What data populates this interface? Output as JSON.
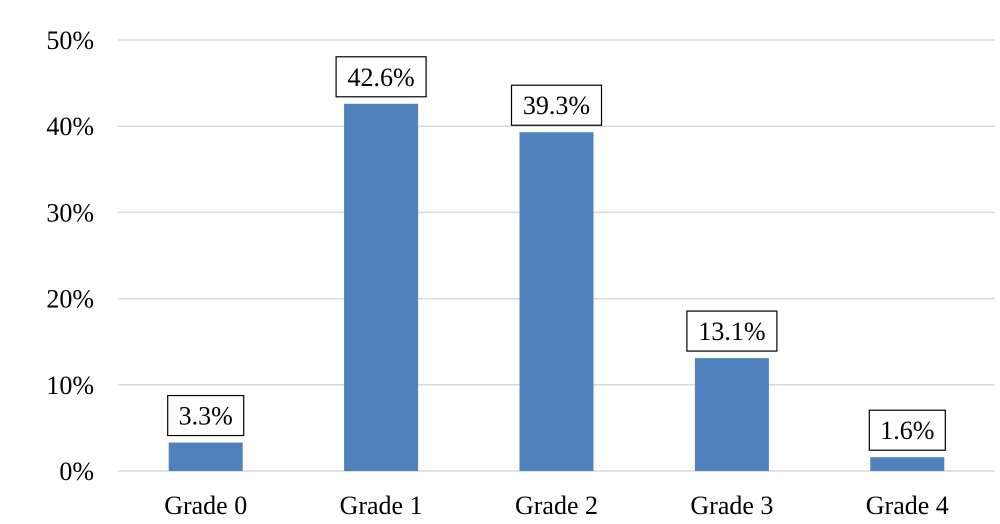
{
  "chart_data": {
    "type": "bar",
    "categories": [
      "Grade 0",
      "Grade 1",
      "Grade 2",
      "Grade 3",
      "Grade 4"
    ],
    "values": [
      3.3,
      42.6,
      39.3,
      13.1,
      1.6
    ],
    "data_labels": [
      "3.3%",
      "42.6%",
      "39.3%",
      "13.1%",
      "1.6%"
    ],
    "ylim": [
      0,
      50
    ],
    "yticks": [
      0,
      10,
      20,
      30,
      40,
      50
    ],
    "ytick_labels": [
      "0%",
      "10%",
      "20%",
      "30%",
      "40%",
      "50%"
    ],
    "title": "",
    "xlabel": "",
    "ylabel": "",
    "grid": true,
    "legend": "none",
    "colors": {
      "bar": "#4f81bd",
      "grid": "#d9d9d9",
      "label_box_border": "#000000",
      "text": "#000000"
    }
  }
}
